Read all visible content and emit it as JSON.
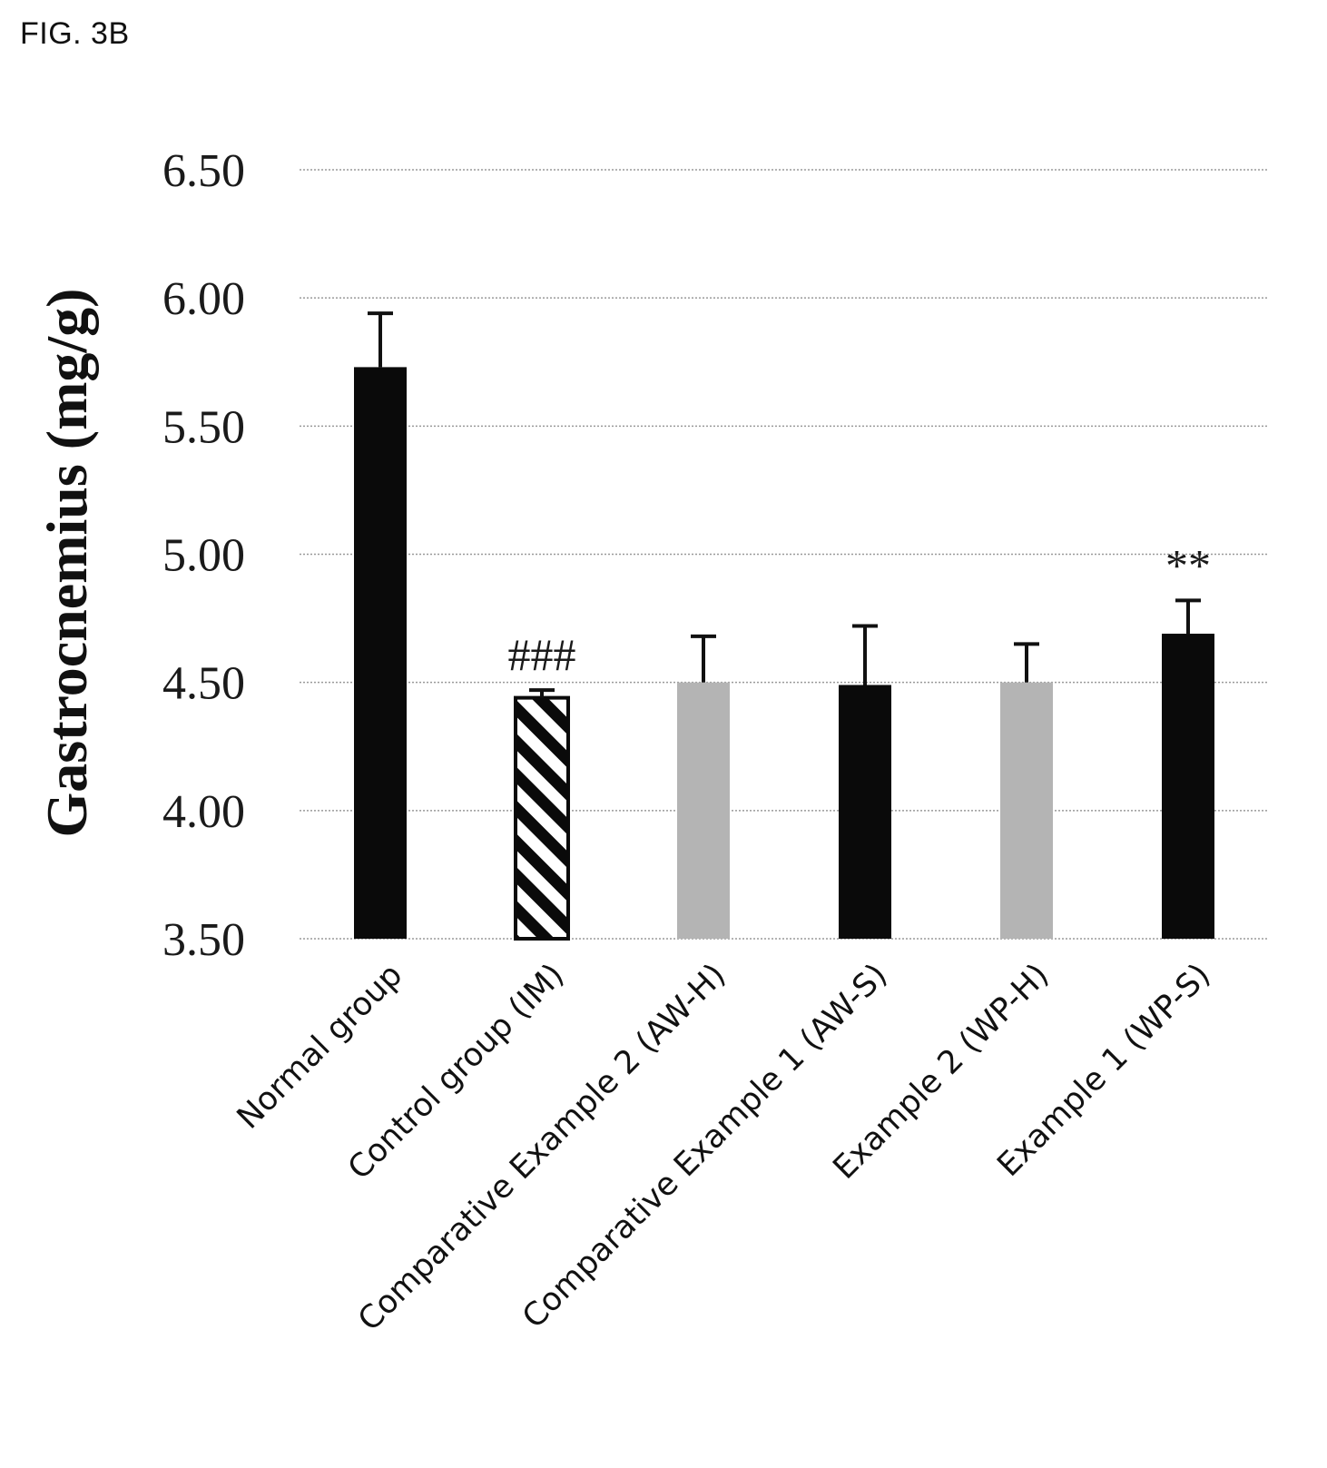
{
  "figure_label": "FIG. 3B",
  "chart_data": {
    "type": "bar",
    "title": "",
    "xlabel": "",
    "ylabel": "Gastrocnemius (mg/g)",
    "ylim": [
      3.5,
      6.5
    ],
    "yticks": [
      3.5,
      4.0,
      4.5,
      5.0,
      5.5,
      6.0,
      6.5
    ],
    "ytick_labels": [
      "3.50",
      "4.00",
      "4.50",
      "5.00",
      "5.50",
      "6.00",
      "6.50"
    ],
    "grid": true,
    "legend": "none",
    "categories": [
      "Normal group",
      "Control group (IM)",
      "Comparative Example 2 (AW-H)",
      "Comparative Example 1 (AW-S)",
      "Example 2 (WP-H)",
      "Example 1 (WP-S)"
    ],
    "values": [
      5.73,
      4.44,
      4.5,
      4.49,
      4.5,
      4.69
    ],
    "errors": [
      0.21,
      0.03,
      0.18,
      0.23,
      0.15,
      0.13
    ],
    "bar_styles": [
      "solid",
      "hatched",
      "gray",
      "solid",
      "gray",
      "solid"
    ],
    "annotations": [
      "",
      "###",
      "",
      "",
      "",
      "**"
    ],
    "colors": {
      "solid": "#0a0a0a",
      "gray": "#b4b4b4",
      "hatch": "#0a0a0a",
      "grid": "#9a9a9a"
    }
  }
}
